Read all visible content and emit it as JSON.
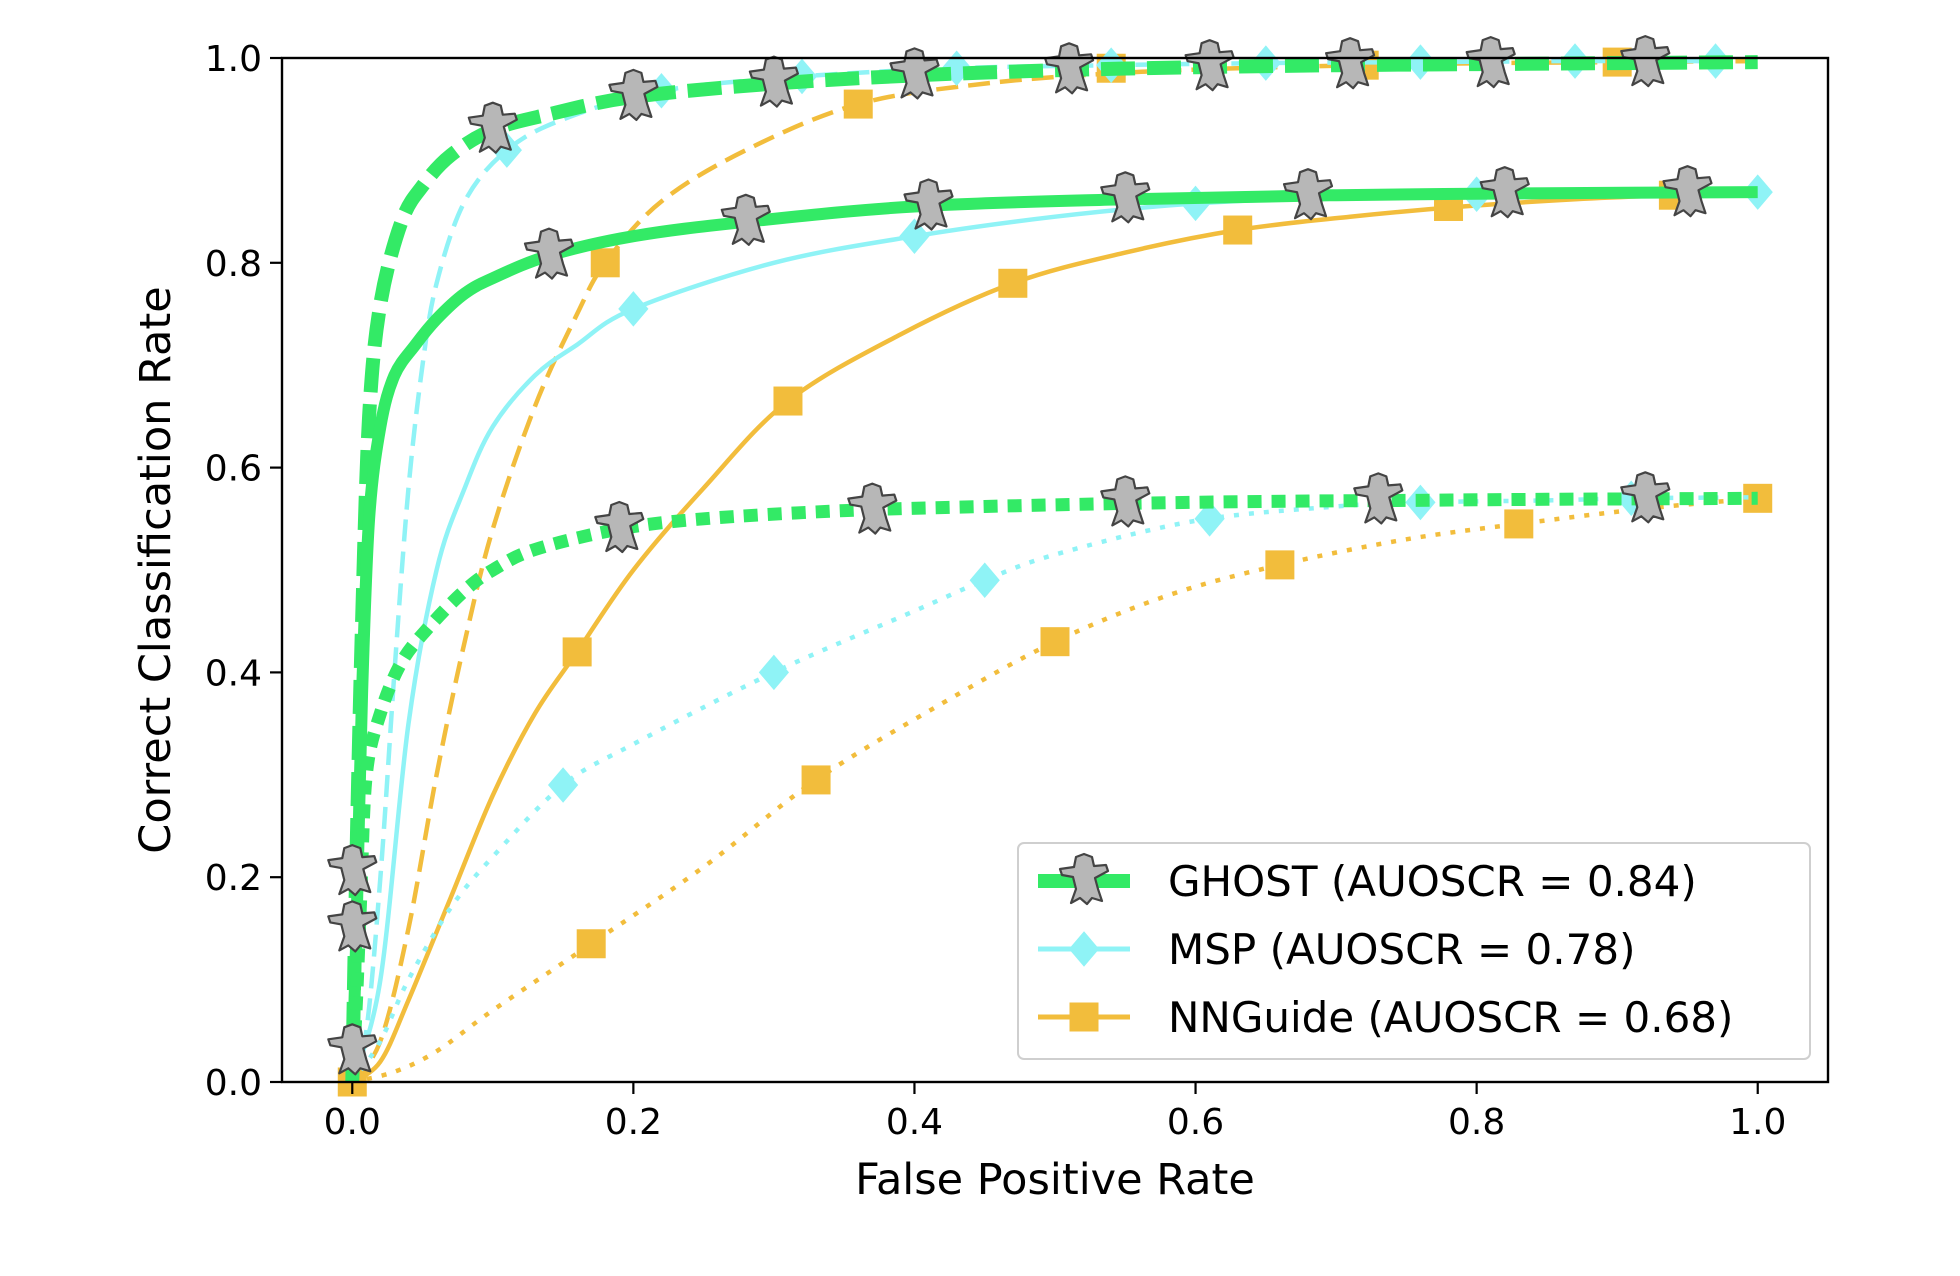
{
  "chart_data": {
    "type": "line",
    "title": "",
    "xlabel": "False Positive Rate",
    "ylabel": "Correct Classification Rate",
    "xlim": [
      -0.05,
      1.05
    ],
    "ylim": [
      0.0,
      1.0
    ],
    "xticks": [
      "0.0",
      "0.2",
      "0.4",
      "0.6",
      "0.8",
      "1.0"
    ],
    "yticks": [
      "0.0",
      "0.2",
      "0.4",
      "0.6",
      "0.8",
      "1.0"
    ],
    "grid": false,
    "legend_position": "bottom-right",
    "legend": [
      {
        "label": "GHOST (AUOSCR = 0.84)",
        "color": "#33ea66",
        "marker": "ghost"
      },
      {
        "label": "MSP (AUOSCR = 0.78)",
        "color": "#8ff3f6",
        "marker": "diamond"
      },
      {
        "label": "NNGuide (AUOSCR = 0.68)",
        "color": "#f2bd3c",
        "marker": "square"
      }
    ],
    "series": [
      {
        "method": "GHOST",
        "style": "dashed",
        "color": "#33ea66",
        "x": [
          0.0,
          0.003,
          0.007,
          0.012,
          0.02,
          0.035,
          0.05,
          0.07,
          0.1,
          0.14,
          0.2,
          0.3,
          0.4,
          0.5,
          0.6,
          0.7,
          0.8,
          0.9,
          1.0
        ],
        "y": [
          0.0,
          0.22,
          0.45,
          0.65,
          0.76,
          0.84,
          0.875,
          0.905,
          0.93,
          0.945,
          0.962,
          0.975,
          0.983,
          0.988,
          0.991,
          0.993,
          0.994,
          0.995,
          0.996
        ],
        "markers_x": [
          0.1,
          0.2,
          0.3,
          0.4,
          0.51,
          0.61,
          0.71,
          0.81,
          0.92
        ],
        "markers_y": [
          0.93,
          0.962,
          0.975,
          0.983,
          0.988,
          0.991,
          0.993,
          0.994,
          0.995
        ]
      },
      {
        "method": "GHOST",
        "style": "solid",
        "color": "#33ea66",
        "x": [
          0.0,
          0.003,
          0.007,
          0.012,
          0.02,
          0.03,
          0.045,
          0.06,
          0.08,
          0.1,
          0.14,
          0.2,
          0.28,
          0.4,
          0.55,
          0.7,
          0.85,
          1.0
        ],
        "y": [
          0.0,
          0.15,
          0.38,
          0.55,
          0.64,
          0.69,
          0.72,
          0.745,
          0.77,
          0.785,
          0.807,
          0.826,
          0.84,
          0.855,
          0.862,
          0.866,
          0.868,
          0.869
        ],
        "markers_x": [
          0.14,
          0.28,
          0.41,
          0.55,
          0.68,
          0.82,
          0.95
        ],
        "markers_y": [
          0.807,
          0.84,
          0.855,
          0.862,
          0.865,
          0.867,
          0.868
        ]
      },
      {
        "method": "GHOST",
        "style": "dotted",
        "color": "#33ea66",
        "x": [
          0.0,
          0.003,
          0.006,
          0.01,
          0.02,
          0.035,
          0.055,
          0.08,
          0.1,
          0.13,
          0.19,
          0.25,
          0.35,
          0.45,
          0.55,
          0.65,
          0.75,
          0.85,
          1.0
        ],
        "y": [
          0.0,
          0.08,
          0.18,
          0.3,
          0.36,
          0.41,
          0.445,
          0.48,
          0.5,
          0.52,
          0.54,
          0.55,
          0.558,
          0.562,
          0.565,
          0.567,
          0.568,
          0.569,
          0.57
        ],
        "markers_x": [
          0.0,
          0.0,
          0.0,
          0.19,
          0.37,
          0.55,
          0.73,
          0.92
        ],
        "markers_y": [
          0.03,
          0.15,
          0.205,
          0.54,
          0.558,
          0.565,
          0.568,
          0.569
        ]
      },
      {
        "method": "MSP",
        "style": "dashed",
        "color": "#8ff3f6",
        "x": [
          0.0,
          0.01,
          0.02,
          0.03,
          0.04,
          0.05,
          0.06,
          0.08,
          0.11,
          0.15,
          0.22,
          0.32,
          0.43,
          0.54,
          0.65,
          0.76,
          0.87,
          0.97
        ],
        "y": [
          0.0,
          0.05,
          0.2,
          0.4,
          0.58,
          0.7,
          0.78,
          0.86,
          0.91,
          0.94,
          0.968,
          0.982,
          0.99,
          0.993,
          0.995,
          0.996,
          0.997,
          0.997
        ],
        "markers_x": [
          0.11,
          0.22,
          0.32,
          0.43,
          0.54,
          0.65,
          0.76,
          0.87,
          0.97
        ],
        "markers_y": [
          0.91,
          0.968,
          0.982,
          0.99,
          0.993,
          0.995,
          0.996,
          0.997,
          0.997
        ]
      },
      {
        "method": "MSP",
        "style": "solid",
        "color": "#8ff3f6",
        "x": [
          0.0,
          0.02,
          0.04,
          0.06,
          0.08,
          0.1,
          0.13,
          0.16,
          0.2,
          0.3,
          0.4,
          0.5,
          0.6,
          0.7,
          0.8,
          0.9,
          1.0
        ],
        "y": [
          0.0,
          0.1,
          0.35,
          0.5,
          0.58,
          0.64,
          0.69,
          0.72,
          0.755,
          0.8,
          0.826,
          0.845,
          0.858,
          0.864,
          0.867,
          0.868,
          0.869
        ],
        "markers_x": [
          0.2,
          0.4,
          0.6,
          0.8,
          1.0
        ],
        "markers_y": [
          0.755,
          0.826,
          0.858,
          0.867,
          0.869
        ]
      },
      {
        "method": "MSP",
        "style": "dotted",
        "color": "#8ff3f6",
        "x": [
          0.0,
          0.02,
          0.04,
          0.07,
          0.1,
          0.15,
          0.2,
          0.3,
          0.4,
          0.45,
          0.5,
          0.6,
          0.7,
          0.76,
          0.85,
          0.91,
          1.0
        ],
        "y": [
          0.0,
          0.04,
          0.1,
          0.17,
          0.22,
          0.29,
          0.33,
          0.4,
          0.46,
          0.49,
          0.515,
          0.548,
          0.562,
          0.566,
          0.568,
          0.57,
          0.571
        ],
        "markers_x": [
          0.15,
          0.3,
          0.45,
          0.61,
          0.76,
          0.91
        ],
        "markers_y": [
          0.29,
          0.4,
          0.49,
          0.55,
          0.566,
          0.57
        ]
      },
      {
        "method": "NNGuide",
        "style": "dashed",
        "color": "#f2bd3c",
        "x": [
          0.0,
          0.02,
          0.04,
          0.06,
          0.08,
          0.1,
          0.13,
          0.16,
          0.18,
          0.22,
          0.28,
          0.36,
          0.45,
          0.54,
          0.63,
          0.72,
          0.81,
          0.9,
          1.0
        ],
        "y": [
          0.0,
          0.04,
          0.15,
          0.3,
          0.43,
          0.54,
          0.66,
          0.75,
          0.8,
          0.86,
          0.91,
          0.955,
          0.975,
          0.985,
          0.99,
          0.993,
          0.995,
          0.996,
          0.997
        ],
        "markers_x": [
          0.0,
          0.18,
          0.36,
          0.54,
          0.72,
          0.9
        ],
        "markers_y": [
          0.0,
          0.8,
          0.955,
          0.99,
          0.993,
          0.996
        ]
      },
      {
        "method": "NNGuide",
        "style": "solid",
        "color": "#f2bd3c",
        "x": [
          0.0,
          0.02,
          0.04,
          0.07,
          0.1,
          0.13,
          0.16,
          0.2,
          0.25,
          0.31,
          0.39,
          0.47,
          0.55,
          0.63,
          0.71,
          0.79,
          0.87,
          0.94,
          1.0
        ],
        "y": [
          0.0,
          0.02,
          0.08,
          0.18,
          0.28,
          0.36,
          0.42,
          0.5,
          0.58,
          0.665,
          0.73,
          0.78,
          0.81,
          0.832,
          0.845,
          0.855,
          0.862,
          0.866,
          0.868
        ],
        "markers_x": [
          0.16,
          0.31,
          0.47,
          0.63,
          0.78,
          0.94
        ],
        "markers_y": [
          0.42,
          0.665,
          0.78,
          0.832,
          0.855,
          0.866
        ]
      },
      {
        "method": "NNGuide",
        "style": "dotted",
        "color": "#f2bd3c",
        "x": [
          0.0,
          0.03,
          0.06,
          0.1,
          0.17,
          0.25,
          0.33,
          0.42,
          0.5,
          0.58,
          0.66,
          0.75,
          0.83,
          0.92,
          1.0
        ],
        "y": [
          0.0,
          0.01,
          0.03,
          0.07,
          0.135,
          0.21,
          0.295,
          0.37,
          0.43,
          0.475,
          0.505,
          0.53,
          0.545,
          0.56,
          0.57
        ],
        "markers_x": [
          0.17,
          0.33,
          0.5,
          0.66,
          0.83,
          1.0
        ],
        "markers_y": [
          0.135,
          0.295,
          0.43,
          0.505,
          0.545,
          0.57
        ]
      }
    ]
  }
}
